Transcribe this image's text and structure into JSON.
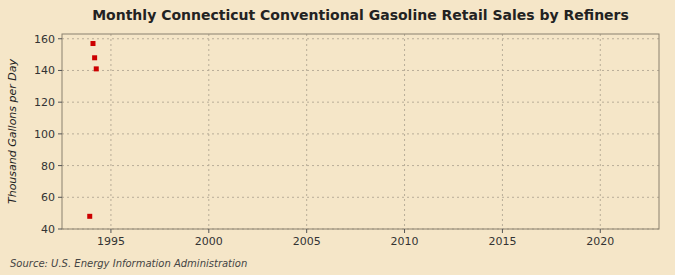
{
  "chart_data": {
    "type": "scatter",
    "title": "Monthly Connecticut Conventional Gasoline Retail Sales by Refiners",
    "y_label": "Thousand Gallons per Day",
    "annotations": [
      "Source: U.S. Energy Information Administration"
    ],
    "x": [
      1993.917,
      1994.083,
      1994.167,
      1994.25
    ],
    "values": [
      48.0,
      157.0,
      148.0,
      141.0
    ],
    "color": "#cc0000",
    "marker": "square",
    "xlim": [
      1992.5,
      2023
    ],
    "ylim": [
      40,
      163
    ],
    "xticks": [
      1995,
      2000,
      2005,
      2010,
      2015,
      2020
    ],
    "yticks": [
      40,
      60,
      80,
      100,
      120,
      140,
      160
    ],
    "grid": true
  }
}
